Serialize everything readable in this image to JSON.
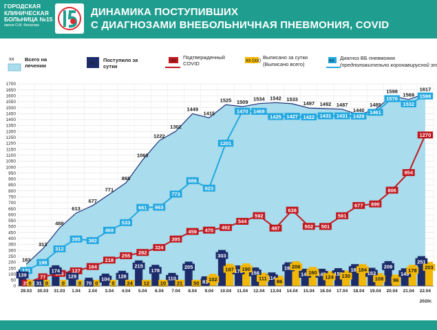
{
  "header": {
    "hospital_line1": "ГОРОДСКАЯ",
    "hospital_line2": "КЛИНИЧЕСКАЯ",
    "hospital_line3": "БОЛЬНИЦА №15",
    "hospital_line4": "имени О.М. Филатова",
    "title_line1": "ДИНАМИКА ПОСТУПИВШИХ",
    "title_line2": "С ДИАГНОЗАМИ ВНЕБОЛЬНИЧНАЯ ПНЕВМОНИЯ, COVID",
    "logo_icon": "hospital-15-logo-icon"
  },
  "chart_data": {
    "type": "bar",
    "categories": [
      "29.03",
      "30.03",
      "31.03",
      "1.04",
      "2.04",
      "3.04",
      "4.04",
      "5.04",
      "6.04",
      "7.04",
      "8.04",
      "9.04",
      "10.04",
      "11.04",
      "12.04",
      "13.04",
      "14.04",
      "15.04",
      "16.04",
      "17.04",
      "18.04",
      "19.04",
      "20.04",
      "21.04",
      "22.04"
    ],
    "year_label": "2020г.",
    "ylim": [
      0,
      1700
    ],
    "yticks": [
      0,
      50,
      100,
      150,
      200,
      250,
      300,
      350,
      400,
      450,
      500,
      550,
      600,
      650,
      700,
      750,
      800,
      850,
      900,
      950,
      1000,
      1050,
      1100,
      1150,
      1200,
      1250,
      1300,
      1350,
      1400,
      1450,
      1500,
      1550,
      1600,
      1650,
      1700
    ],
    "grid": true,
    "legend": {
      "position": "top",
      "total_marker": "xx",
      "total_label": "Всего на лечении",
      "admitted_marker": "xx",
      "admitted_label": "Поступило за сутки",
      "covid_marker": "xx",
      "covid_label": "Подтвержденный COVID",
      "discharged_marker": "xx (xx)",
      "discharged_label": "Выписано за сутки (Выписано всего)",
      "vb_marker": "xx",
      "vb_label": "Диагноз ВБ пневмония",
      "vb_sublabel": "(предположительно коронавирусной этиологии)"
    },
    "series": [
      {
        "name": "Всего на лечении",
        "kind": "area",
        "color": "#a9dcec",
        "line_color": "#1c2f78",
        "values": [
          183,
          313,
          488,
          613,
          677,
          771,
          868,
          1060,
          1222,
          1302,
          1449,
          1415,
          1525,
          1509,
          1534,
          1542,
          1533,
          1497,
          1492,
          1487,
          1440,
          1485,
          1598,
          1569,
          1617
        ]
      },
      {
        "name": "Поступило за сутки",
        "kind": "bar",
        "color": "#1c2c6b",
        "values": [
          139,
          31,
          174,
          129,
          70,
          104,
          128,
          215,
          178,
          110,
          205,
          81,
          303,
          173,
          156,
          114,
          199,
          145,
          145,
          150,
          184,
          153,
          209,
          149,
          251
        ]
      },
      {
        "name": "Выписано за сутки",
        "kind": "bar",
        "color": "#f2b705",
        "values": [
          0,
          0,
          0,
          0,
          0,
          0,
          24,
          12,
          10,
          21,
          50,
          102,
          187,
          190,
          111,
          86,
          208,
          160,
          124,
          130,
          184,
          108,
          96,
          178,
          203
        ]
      },
      {
        "name": "Подтвержденный COVID",
        "kind": "line",
        "color": "#c0181f",
        "values": [
          25,
          77,
          106,
          127,
          164,
          218,
          255,
          282,
          324,
          395,
          459,
          470,
          492,
          544,
          592,
          487,
          638,
          502,
          501,
          591,
          677,
          690,
          806,
          954,
          1270
        ]
      },
      {
        "name": "Диагноз ВБ пневмония",
        "kind": "line",
        "color": "#22a7e0",
        "values": [
          131,
          198,
          312,
          395,
          382,
          469,
          533,
          661,
          663,
          773,
          886,
          823,
          1201,
          1470,
          1469,
          1425,
          1427,
          1422,
          1431,
          1431,
          1429,
          1461,
          1576,
          1532,
          1598
        ]
      }
    ]
  }
}
